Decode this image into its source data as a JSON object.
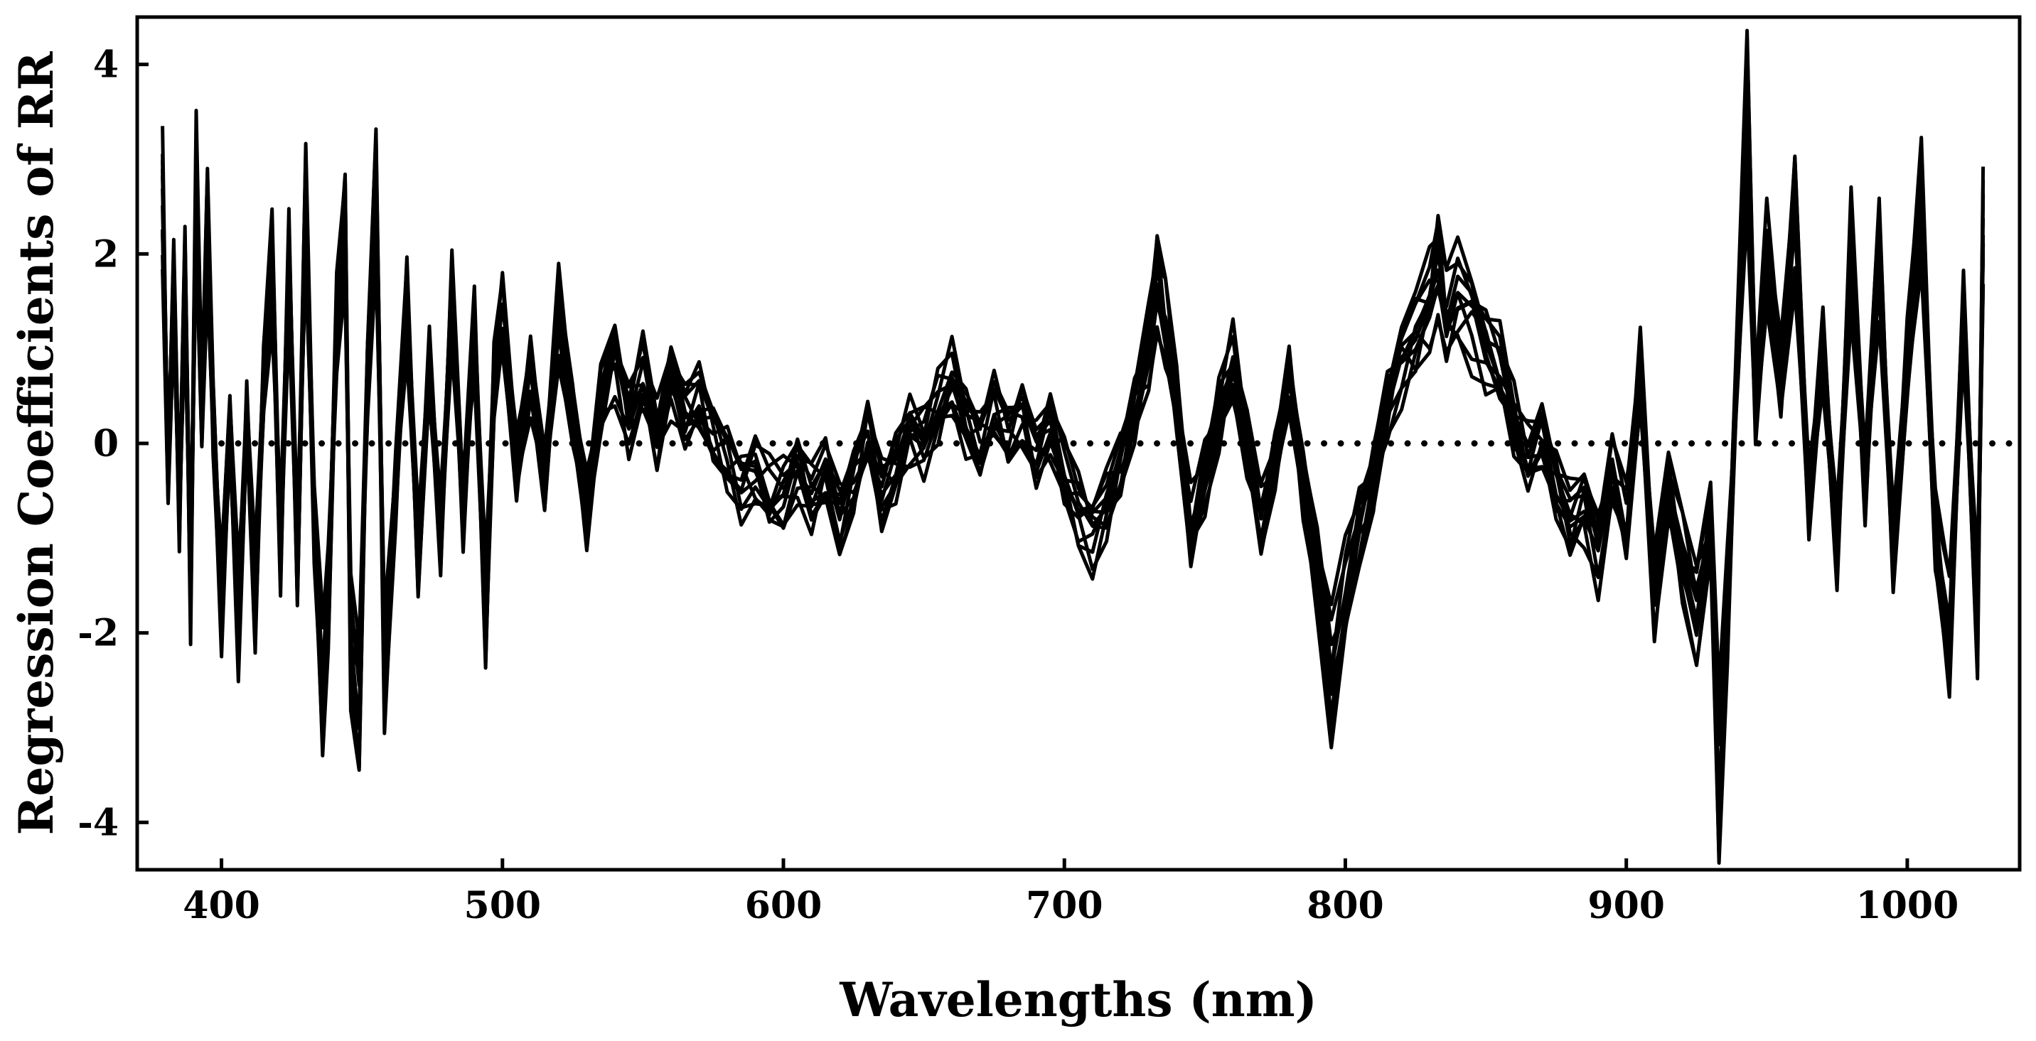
{
  "chart_data": {
    "type": "line",
    "title": "",
    "xlabel": "Wavelengths (nm)",
    "ylabel": "Regression Coefficients of RR",
    "xlim": [
      370,
      1040
    ],
    "ylim": [
      -4.5,
      4.5
    ],
    "xticks": [
      400,
      500,
      600,
      700,
      800,
      900,
      1000
    ],
    "yticks": [
      -4,
      -2,
      0,
      2,
      4
    ],
    "xtick_labels": [
      "400",
      "500",
      "600",
      "700",
      "800",
      "900",
      "1000"
    ],
    "ytick_labels": [
      "-4",
      "-2",
      "0",
      "2",
      "4"
    ],
    "grid": false,
    "legend": "none",
    "reference_line": {
      "y": 0,
      "style": "dotted",
      "x_start": 400,
      "x_end": 1040
    },
    "series_count": 12,
    "series_color": "#000000",
    "representative_profile": {
      "x": [
        379,
        381,
        383,
        385,
        387,
        389,
        391,
        393,
        395,
        397,
        400,
        403,
        406,
        409,
        412,
        415,
        418,
        421,
        424,
        427,
        430,
        433,
        436,
        438,
        441,
        444,
        446,
        449,
        452,
        455,
        458,
        462,
        466,
        470,
        474,
        478,
        482,
        486,
        490,
        494,
        497,
        500,
        505,
        510,
        515,
        520,
        525,
        530,
        535,
        540,
        545,
        550,
        555,
        560,
        565,
        570,
        575,
        580,
        585,
        590,
        595,
        600,
        605,
        610,
        615,
        620,
        625,
        630,
        635,
        640,
        645,
        650,
        655,
        660,
        665,
        670,
        675,
        680,
        685,
        690,
        695,
        700,
        705,
        710,
        715,
        720,
        725,
        730,
        733,
        736,
        740,
        745,
        750,
        755,
        760,
        765,
        770,
        775,
        780,
        785,
        790,
        795,
        800,
        805,
        810,
        815,
        820,
        825,
        830,
        833,
        836,
        840,
        845,
        850,
        855,
        860,
        865,
        870,
        875,
        880,
        885,
        890,
        895,
        900,
        905,
        910,
        915,
        920,
        925,
        930,
        933,
        936,
        940,
        943,
        946,
        950,
        955,
        960,
        965,
        970,
        975,
        980,
        985,
        990,
        995,
        1000,
        1005,
        1010,
        1015,
        1020,
        1025,
        1027
      ],
      "y": [
        3.1,
        -0.4,
        2.0,
        -0.9,
        2.2,
        -1.8,
        3.2,
        0.5,
        2.9,
        0.3,
        -1.9,
        0.2,
        -2.4,
        0.4,
        -2.0,
        0.8,
        2.2,
        -1.4,
        2.4,
        -1.5,
        2.9,
        -1.0,
        -3.2,
        -2.0,
        1.5,
        2.8,
        -2.5,
        -3.3,
        1.0,
        3.3,
        -2.8,
        -0.5,
        1.9,
        -1.5,
        1.0,
        -1.2,
        1.8,
        -0.8,
        1.5,
        -2.4,
        0.8,
        1.5,
        -0.3,
        1.0,
        -0.5,
        1.6,
        0.4,
        -0.8,
        0.5,
        1.2,
        0.3,
        0.8,
        0.1,
        0.9,
        0.4,
        0.6,
        0.1,
        -0.2,
        -0.5,
        -0.4,
        -0.7,
        -0.6,
        -0.3,
        -0.7,
        -0.4,
        -1.0,
        -0.5,
        0.2,
        -0.6,
        -0.3,
        0.2,
        0.0,
        0.4,
        0.8,
        0.3,
        0.0,
        0.5,
        0.1,
        0.3,
        -0.1,
        0.2,
        -0.4,
        -0.8,
        -1.1,
        -0.8,
        -0.3,
        0.4,
        1.2,
        2.1,
        1.5,
        0.5,
        -1.2,
        -0.5,
        0.3,
        1.0,
        0.0,
        -1.0,
        -0.2,
        0.8,
        -0.5,
        -1.5,
        -3.1,
        -2.0,
        -1.0,
        -0.4,
        0.5,
        1.1,
        1.4,
        1.8,
        2.3,
        1.6,
        1.9,
        1.7,
        1.2,
        0.9,
        0.3,
        -0.2,
        0.1,
        -0.5,
        -1.0,
        -0.8,
        -1.3,
        -0.4,
        -1.1,
        0.9,
        -1.8,
        -0.6,
        -1.5,
        -2.2,
        -1.0,
        -4.3,
        -2.0,
        1.5,
        4.4,
        0.5,
        2.2,
        0.8,
        3.0,
        -0.8,
        1.2,
        -1.4,
        2.4,
        -0.5,
        2.5,
        -1.5,
        1.0,
        2.9,
        -1.2,
        -2.5,
        1.6,
        -2.3,
        2.8
      ]
    }
  }
}
